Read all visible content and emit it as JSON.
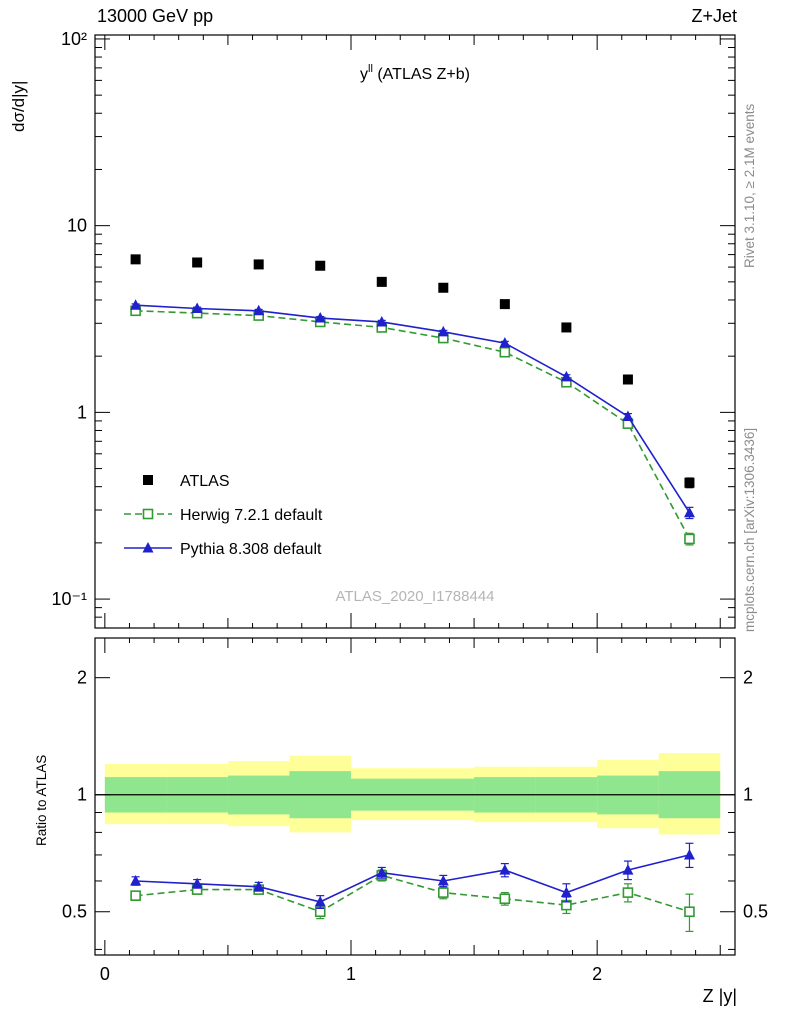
{
  "header": {
    "left": "13000 GeV pp",
    "right": "Z+Jet"
  },
  "titles": {
    "main_base": "y",
    "main_sup": "ll",
    "main_rest": " (ATLAS Z+b)",
    "y_axis_main": "dσ/d|y|",
    "y_axis_ratio": "Ratio to ATLAS",
    "x_axis": "Z |y|",
    "watermark": "ATLAS_2020_I1788444"
  },
  "side_notes": {
    "right_top": "Rivet 3.1.10, ≥ 2.1M events",
    "right_bottom": "mcplots.cern.ch [arXiv:1306.3436]"
  },
  "chart_data": {
    "type": "line",
    "x_label": "Z |y|",
    "x_range": [
      -0.04,
      2.56
    ],
    "x_major_ticks": [
      0,
      1,
      2
    ],
    "x_tick_labels": [
      "0",
      "1",
      "2"
    ],
    "bin_centers": [
      0.125,
      0.375,
      0.625,
      0.875,
      1.125,
      1.375,
      1.625,
      1.875,
      2.125,
      2.375
    ],
    "bin_edges": [
      0,
      0.25,
      0.5,
      0.75,
      1.0,
      1.25,
      1.5,
      1.75,
      2.0,
      2.25,
      2.5
    ],
    "main_panel": {
      "y_scale": "log",
      "y_range": [
        0.07,
        105
      ],
      "y_ticks": [
        {
          "value": 100,
          "label": "10²"
        },
        {
          "value": 10,
          "label": "10"
        },
        {
          "value": 1,
          "label": "1"
        },
        {
          "value": 0.1,
          "label": "10⁻¹"
        }
      ],
      "series": [
        {
          "name": "ATLAS",
          "color": "#000000",
          "marker": "filled-square",
          "line": "none",
          "y": [
            6.6,
            6.35,
            6.2,
            6.1,
            5.0,
            4.65,
            3.8,
            2.85,
            1.5,
            0.42
          ],
          "yerr": [
            0.25,
            0.22,
            0.2,
            0.2,
            0.18,
            0.15,
            0.13,
            0.1,
            0.06,
            0.025
          ]
        },
        {
          "name": "Herwig 7.2.1 default",
          "color": "#339933",
          "marker": "open-square",
          "line": "dashed",
          "y": [
            3.5,
            3.4,
            3.3,
            3.05,
            2.85,
            2.5,
            2.1,
            1.45,
            0.87,
            0.21
          ],
          "yerr": [
            0.06,
            0.06,
            0.06,
            0.06,
            0.06,
            0.05,
            0.05,
            0.04,
            0.03,
            0.015
          ]
        },
        {
          "name": "Pythia 8.308 default",
          "color": "#2020cc",
          "marker": "filled-triangle",
          "line": "solid",
          "y": [
            3.75,
            3.6,
            3.5,
            3.2,
            3.05,
            2.7,
            2.35,
            1.55,
            0.95,
            0.29
          ],
          "yerr": [
            0.06,
            0.06,
            0.06,
            0.06,
            0.06,
            0.05,
            0.05,
            0.04,
            0.035,
            0.02
          ]
        }
      ]
    },
    "ratio_panel": {
      "y_scale": "log",
      "y_range": [
        0.387,
        2.53
      ],
      "reference_y": 1,
      "y_ticks": [
        {
          "value": 2,
          "label": "2"
        },
        {
          "value": 1,
          "label": "1"
        },
        {
          "value": 0.5,
          "label": "0.5"
        }
      ],
      "bands": [
        {
          "name": "yellow-uncertainty",
          "color": "#ffff99",
          "lo": [
            0.84,
            0.84,
            0.83,
            0.8,
            0.86,
            0.86,
            0.85,
            0.85,
            0.82,
            0.79
          ],
          "hi": [
            1.2,
            1.2,
            1.22,
            1.26,
            1.17,
            1.17,
            1.18,
            1.18,
            1.23,
            1.28
          ]
        },
        {
          "name": "green-uncertainty",
          "color": "#8fe68f",
          "lo": [
            0.9,
            0.9,
            0.89,
            0.87,
            0.91,
            0.91,
            0.9,
            0.9,
            0.89,
            0.87
          ],
          "hi": [
            1.11,
            1.11,
            1.12,
            1.15,
            1.1,
            1.1,
            1.11,
            1.11,
            1.12,
            1.15
          ]
        }
      ],
      "series": [
        {
          "name": "Herwig 7.2.1 default",
          "color": "#339933",
          "marker": "open-square",
          "line": "dashed",
          "y": [
            0.55,
            0.57,
            0.57,
            0.5,
            0.62,
            0.56,
            0.54,
            0.52,
            0.56,
            0.5
          ],
          "yerr": [
            0.015,
            0.015,
            0.015,
            0.02,
            0.02,
            0.02,
            0.02,
            0.025,
            0.03,
            0.055
          ]
        },
        {
          "name": "Pythia 8.308 default",
          "color": "#2020cc",
          "marker": "filled-triangle",
          "line": "solid",
          "y": [
            0.6,
            0.59,
            0.58,
            0.53,
            0.63,
            0.6,
            0.64,
            0.56,
            0.64,
            0.7
          ],
          "yerr": [
            0.015,
            0.015,
            0.015,
            0.02,
            0.02,
            0.02,
            0.025,
            0.03,
            0.035,
            0.05
          ]
        }
      ]
    }
  },
  "legend": {
    "items": [
      {
        "label": "ATLAS"
      },
      {
        "label": "Herwig 7.2.1 default"
      },
      {
        "label": "Pythia 8.308 default"
      }
    ]
  }
}
